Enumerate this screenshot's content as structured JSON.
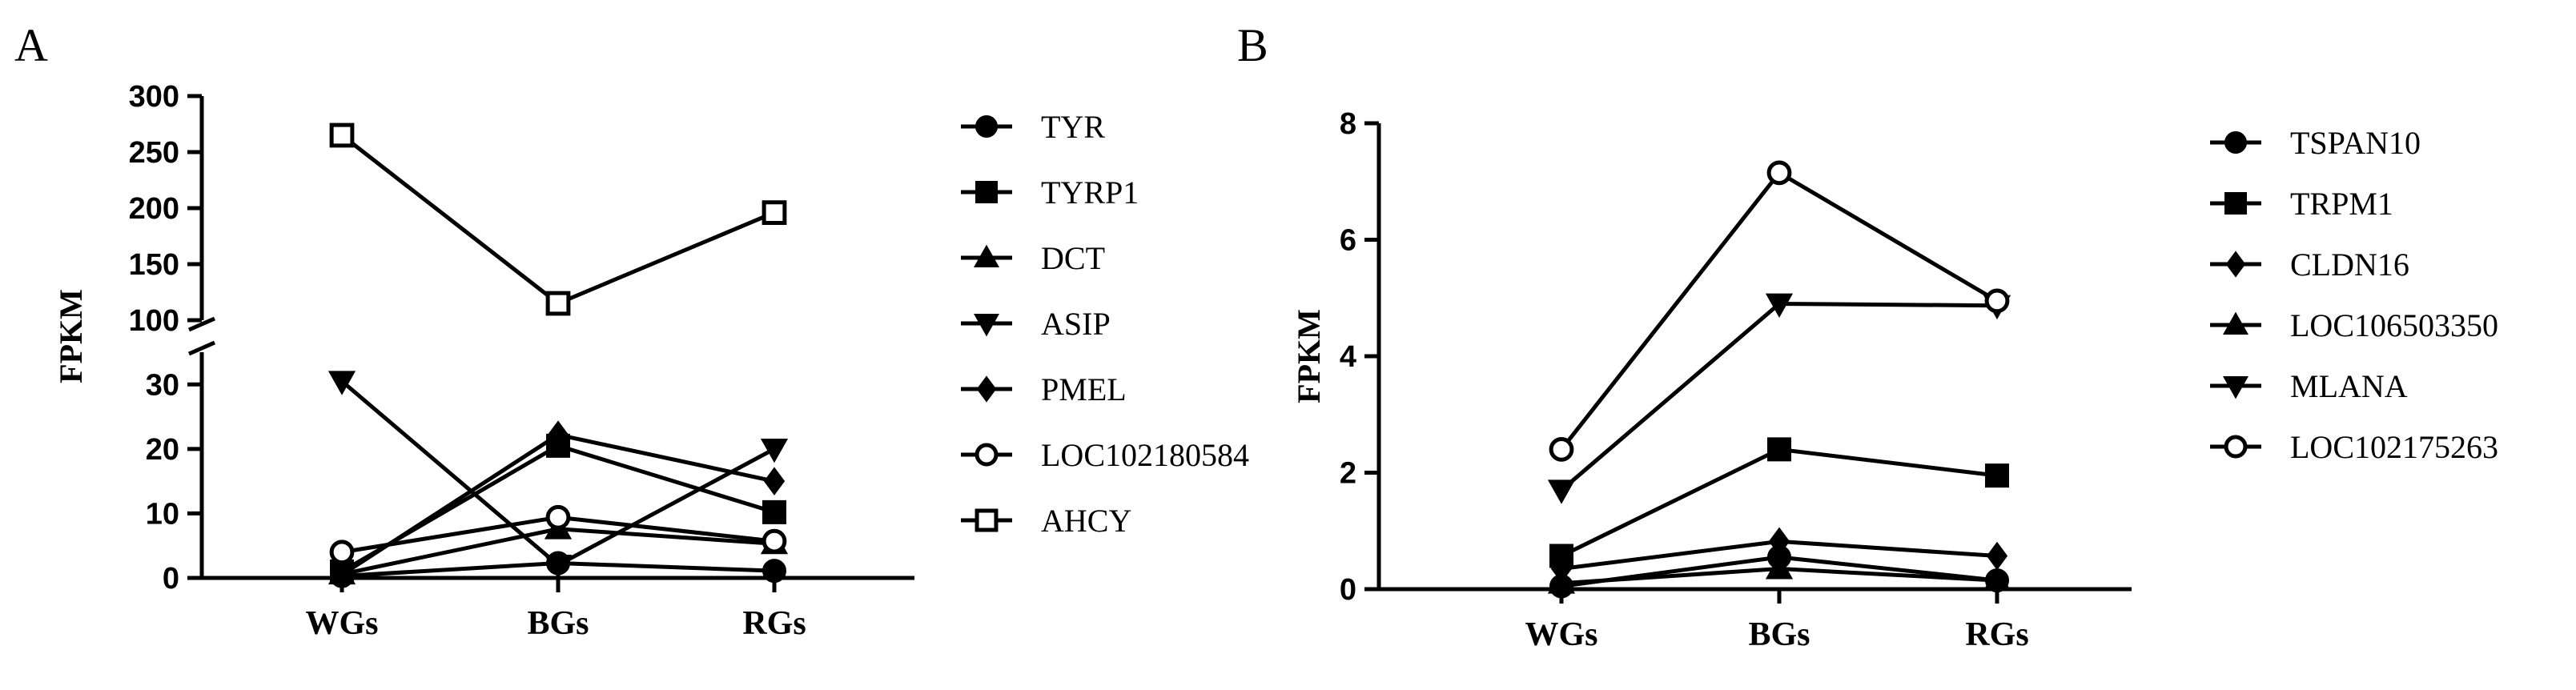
{
  "panels": {
    "a": {
      "letter": "A"
    },
    "b": {
      "letter": "B"
    }
  },
  "chart_data": [
    {
      "type": "line",
      "ylabel": "FPKM",
      "categories": [
        "WGs",
        "BGs",
        "RGs"
      ],
      "y_axis_broken": true,
      "ylim_lower": [
        0,
        35
      ],
      "ylim_upper": [
        100,
        300
      ],
      "yticks_lower": [
        "0",
        "10",
        "20",
        "30"
      ],
      "yticks_upper": [
        "100",
        "150",
        "200",
        "250",
        "300"
      ],
      "legend_position": "right",
      "series": [
        {
          "name": "TYR",
          "marker": "circle-filled",
          "values": [
            0.3,
            2.3,
            1.1
          ]
        },
        {
          "name": "TYRP1",
          "marker": "square-filled",
          "values": [
            1.0,
            20.5,
            10.2
          ]
        },
        {
          "name": "DCT",
          "marker": "triangle-up-filled",
          "values": [
            0.6,
            7.6,
            5.3
          ]
        },
        {
          "name": "ASIP",
          "marker": "triangle-down-filled",
          "values": [
            30.5,
            2.0,
            20.0
          ]
        },
        {
          "name": "PMEL",
          "marker": "diamond-filled",
          "values": [
            0.5,
            22.2,
            15.0
          ]
        },
        {
          "name": "LOC102180584",
          "marker": "circle-open",
          "values": [
            4.0,
            9.4,
            5.7
          ]
        },
        {
          "name": "AHCY",
          "marker": "square-open",
          "values": [
            265,
            115,
            196
          ]
        }
      ]
    },
    {
      "type": "line",
      "ylabel": "FPKM",
      "categories": [
        "WGs",
        "BGs",
        "RGs"
      ],
      "ylim": [
        0,
        8
      ],
      "yticks": [
        "0",
        "2",
        "4",
        "6",
        "8"
      ],
      "legend_position": "right",
      "series": [
        {
          "name": "TSPAN10",
          "marker": "circle-filled",
          "values": [
            0.05,
            0.55,
            0.15
          ]
        },
        {
          "name": "TRPM1",
          "marker": "square-filled",
          "values": [
            0.57,
            2.4,
            1.95
          ]
        },
        {
          "name": "CLDN16",
          "marker": "diamond-filled",
          "values": [
            0.35,
            0.82,
            0.57
          ]
        },
        {
          "name": "LOC106503350",
          "marker": "triangle-up-filled",
          "values": [
            0.1,
            0.35,
            0.15
          ]
        },
        {
          "name": "MLANA",
          "marker": "triangle-down-filled",
          "values": [
            1.7,
            4.9,
            4.87
          ]
        },
        {
          "name": "LOC102175263",
          "marker": "circle-open",
          "values": [
            2.4,
            7.15,
            4.95
          ]
        }
      ]
    }
  ]
}
